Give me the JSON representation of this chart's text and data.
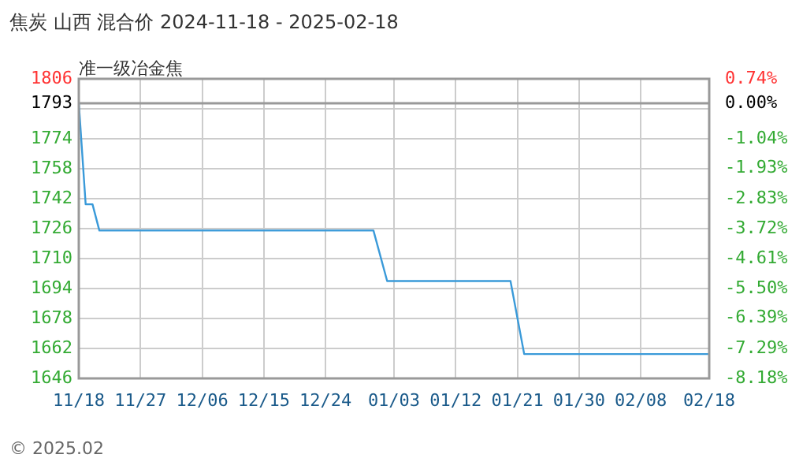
{
  "chart_data": {
    "type": "line",
    "title": "焦炭 山西 混合价 2024-11-18 - 2025-02-18",
    "subtitle": "准一级冶金焦",
    "x": [
      "2024-11-18",
      "2024-11-19",
      "2024-11-20",
      "2024-11-21",
      "2024-12-31",
      "2025-01-02",
      "2025-01-20",
      "2025-01-22",
      "2025-02-18"
    ],
    "series": [
      {
        "color": "#3a9ad9",
        "values": [
          1793,
          1739,
          1739,
          1725,
          1725,
          1698,
          1698,
          1659,
          1659
        ]
      }
    ],
    "xlim": [
      "2024-11-18",
      "2025-02-18"
    ],
    "xticks": [
      {
        "value": "2024-11-18",
        "label": "11/18"
      },
      {
        "value": "2024-11-27",
        "label": "11/27"
      },
      {
        "value": "2024-12-06",
        "label": "12/06"
      },
      {
        "value": "2024-12-15",
        "label": "12/15"
      },
      {
        "value": "2024-12-24",
        "label": "12/24"
      },
      {
        "value": "2025-01-03",
        "label": "01/03"
      },
      {
        "value": "2025-01-12",
        "label": "01/12"
      },
      {
        "value": "2025-01-21",
        "label": "01/21"
      },
      {
        "value": "2025-01-30",
        "label": "01/30"
      },
      {
        "value": "2025-02-08",
        "label": "02/08"
      },
      {
        "value": "2025-02-18",
        "label": "02/18"
      }
    ],
    "ylim": [
      1646,
      1806
    ],
    "yticks": [
      1646,
      1662,
      1678,
      1694,
      1710,
      1726,
      1742,
      1758,
      1774,
      {
        "value": 1790,
        "label": null
      },
      1793,
      1806
    ],
    "y2lim": [
      -8.18,
      0.74
    ],
    "y2ticks": [
      {
        "value": -8.18,
        "label": "-8.18%"
      },
      {
        "value": -7.29,
        "label": "-7.29%"
      },
      {
        "value": -6.39,
        "label": "-6.39%"
      },
      {
        "value": -5.5,
        "label": "-5.50%"
      },
      {
        "value": -4.61,
        "label": "-4.61%"
      },
      {
        "value": -3.72,
        "label": "-3.72%"
      },
      {
        "value": -2.83,
        "label": "-2.83%"
      },
      {
        "value": -1.93,
        "label": "-1.93%"
      },
      {
        "value": -1.04,
        "label": "-1.04%"
      },
      {
        "value": 0,
        "label": "0.00%"
      },
      {
        "value": 0.74,
        "label": "0.74%"
      }
    ],
    "ref_lines": [
      {
        "axis": "y",
        "value": 1793,
        "color": "#999999",
        "line_style": "solid"
      }
    ],
    "grid": true,
    "marker": "none",
    "line_style": "solid",
    "legend": false,
    "annotations": [
      "© 2025.02"
    ]
  }
}
